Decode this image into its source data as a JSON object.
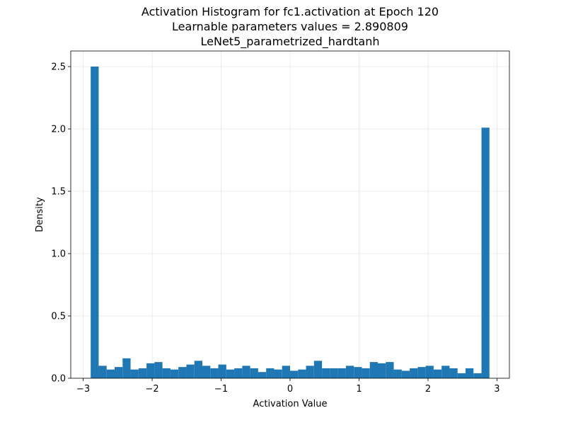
{
  "chart_data": {
    "type": "bar",
    "title_lines": [
      "Activation Histogram for fc1.activation at Epoch 120",
      "Learnable parameters values = 2.890809",
      "LeNet5_parametrized_hardtanh"
    ],
    "xlabel": "Activation Value",
    "ylabel": "Density",
    "xlim": [
      -3.18,
      3.18
    ],
    "ylim": [
      0,
      2.625
    ],
    "xticks": [
      {
        "value": -3,
        "label": "−3"
      },
      {
        "value": -2,
        "label": "−2"
      },
      {
        "value": -1,
        "label": "−1"
      },
      {
        "value": 0,
        "label": "0"
      },
      {
        "value": 1,
        "label": "1"
      },
      {
        "value": 2,
        "label": "2"
      },
      {
        "value": 3,
        "label": "3"
      }
    ],
    "yticks": [
      {
        "value": 0,
        "label": "0.0"
      },
      {
        "value": 0.5,
        "label": "0.5"
      },
      {
        "value": 1.0,
        "label": "1.0"
      },
      {
        "value": 1.5,
        "label": "1.5"
      },
      {
        "value": 2.0,
        "label": "2.0"
      },
      {
        "value": 2.5,
        "label": "2.5"
      }
    ],
    "grid": true,
    "bar_color": "#1f77b4",
    "bins": {
      "start": -2.890809,
      "end": 2.890809,
      "count": 50
    },
    "values": [
      2.5,
      0.1,
      0.07,
      0.09,
      0.16,
      0.07,
      0.08,
      0.12,
      0.13,
      0.08,
      0.07,
      0.09,
      0.11,
      0.14,
      0.1,
      0.08,
      0.11,
      0.07,
      0.08,
      0.1,
      0.08,
      0.05,
      0.08,
      0.07,
      0.1,
      0.06,
      0.07,
      0.1,
      0.14,
      0.08,
      0.08,
      0.08,
      0.1,
      0.09,
      0.08,
      0.13,
      0.12,
      0.13,
      0.07,
      0.06,
      0.08,
      0.09,
      0.1,
      0.07,
      0.1,
      0.08,
      0.04,
      0.08,
      0.04,
      2.01
    ]
  }
}
